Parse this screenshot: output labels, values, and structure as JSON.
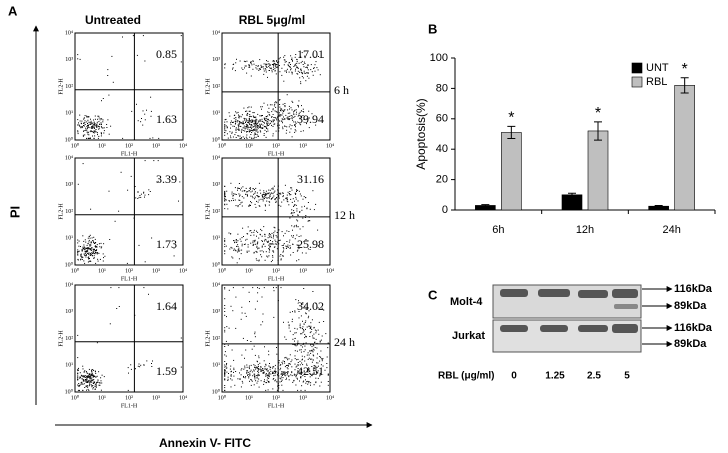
{
  "panel_a": {
    "label": "A",
    "columns": [
      "Untreated",
      "RBL 5μg/ml"
    ],
    "rows": [
      "6 h",
      "12 h",
      "24 h"
    ],
    "y_axis_label": "PI",
    "x_axis_label": "Annexin V- FITC",
    "plot_y_label": "FL2-H",
    "plot_x_label": "FL1-H",
    "ticks": [
      "10⁰",
      "10¹",
      "10²",
      "10³",
      "10⁴"
    ],
    "plots": [
      {
        "upper_right": 0.85,
        "lower_right": 1.63
      },
      {
        "upper_right": 17.01,
        "lower_right": 39.94
      },
      {
        "upper_right": 3.39,
        "lower_right": 1.73
      },
      {
        "upper_right": 31.16,
        "lower_right": 25.98
      },
      {
        "upper_right": 1.64,
        "lower_right": 1.59
      },
      {
        "upper_right": 34.02,
        "lower_right": 42.51
      }
    ]
  },
  "chart_data": {
    "type": "bar",
    "panel_label": "B",
    "y_label": "Apoptosis(%)",
    "categories": [
      "6h",
      "12h",
      "24h"
    ],
    "series": [
      {
        "name": "UNT",
        "color": "#000000",
        "values": [
          3,
          10,
          2.5
        ],
        "errors": [
          0.5,
          1,
          0.5
        ]
      },
      {
        "name": "RBL",
        "color": "#bfbfbf",
        "values": [
          51,
          52,
          82
        ],
        "errors": [
          4,
          6,
          5
        ],
        "markers": [
          "*",
          "*",
          "*"
        ]
      }
    ],
    "ylim": [
      0,
      100
    ],
    "yticks": [
      0,
      20,
      40,
      60,
      80,
      100
    ],
    "grid": false,
    "legend": "upper right"
  },
  "panel_c": {
    "label": "C",
    "cell_lines": [
      "Molt-4",
      "Jurkat"
    ],
    "markers": [
      "116kDa",
      "89kDa"
    ],
    "dose_label": "RBL  (μg/ml)",
    "doses": [
      "0",
      "1.25",
      "2.5",
      "5"
    ]
  }
}
